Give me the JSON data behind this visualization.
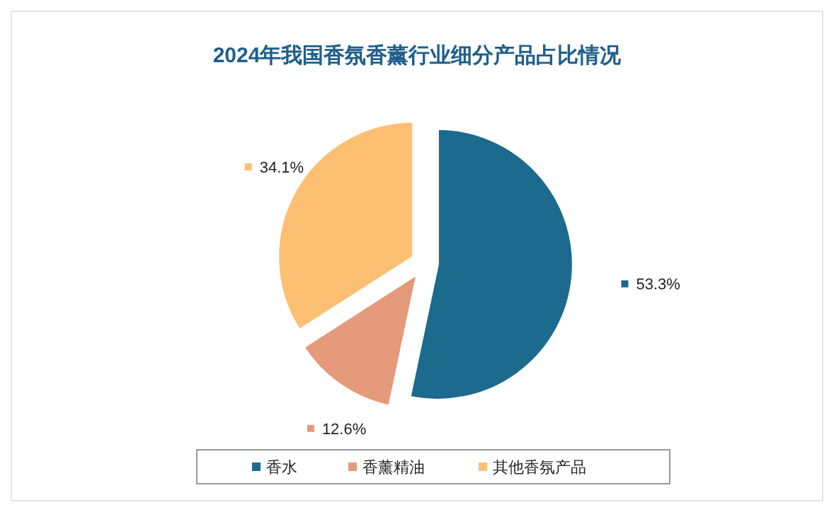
{
  "chart_data": {
    "type": "pie",
    "title": "2024年我国香氛香薰行业细分产品占比情况",
    "categories": [
      "香水",
      "香薰精油",
      "其他香氛产品"
    ],
    "values": [
      53.3,
      12.6,
      34.1
    ],
    "colors": [
      "#1c6a8e",
      "#e59a7b",
      "#fdbf72"
    ],
    "value_labels": [
      "53.3%",
      "12.6%",
      "34.1%"
    ],
    "legend": "bottom"
  }
}
